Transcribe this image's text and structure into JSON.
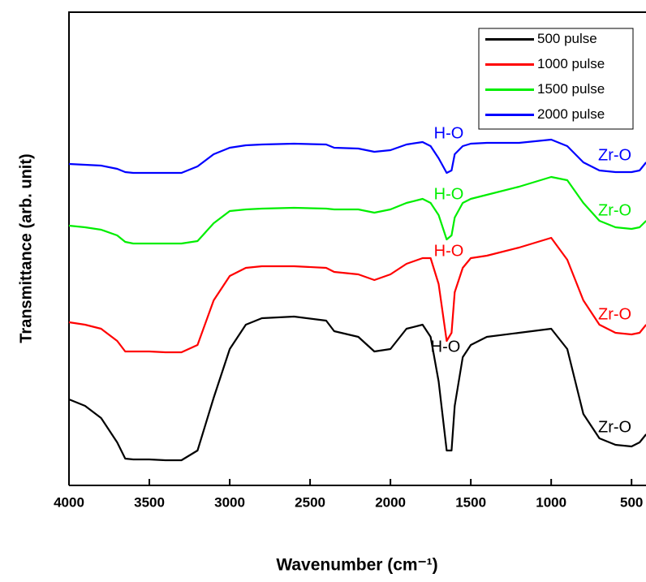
{
  "chart_data": {
    "type": "line",
    "x_label": "Wavenumber (cm⁻¹)",
    "y_label": "Transmittance (arb. unit)",
    "xlim": [
      4000,
      400
    ],
    "ylim": [
      0,
      583
    ],
    "xticks": [
      4000,
      3500,
      3000,
      2500,
      2000,
      1500,
      1000,
      500
    ],
    "x": [
      4000,
      3900,
      3800,
      3700,
      3650,
      3600,
      3500,
      3400,
      3300,
      3200,
      3100,
      3000,
      2900,
      2800,
      2600,
      2400,
      2350,
      2200,
      2100,
      2000,
      1900,
      1800,
      1750,
      1700,
      1650,
      1620,
      1600,
      1550,
      1500,
      1400,
      1200,
      1000,
      900,
      800,
      700,
      600,
      500,
      450,
      409
    ],
    "series": [
      {
        "name": "500 pulse",
        "color": "#000000",
        "values": [
          106,
          98,
          83,
          53,
          33,
          32,
          32,
          31,
          31,
          43,
          108,
          168,
          198,
          206,
          208,
          203,
          190,
          183,
          165,
          168,
          193,
          198,
          183,
          128,
          43,
          43,
          98,
          158,
          173,
          183,
          188,
          193,
          168,
          88,
          58,
          50,
          48,
          53,
          63
        ]
      },
      {
        "name": "1000 pulse",
        "color": "#ff0000",
        "values": [
          201,
          198,
          193,
          178,
          165,
          165,
          165,
          164,
          164,
          173,
          228,
          258,
          268,
          270,
          270,
          268,
          263,
          260,
          253,
          260,
          273,
          280,
          280,
          248,
          178,
          188,
          238,
          268,
          280,
          283,
          293,
          305,
          278,
          228,
          198,
          188,
          186,
          188,
          198
        ]
      },
      {
        "name": "1500 pulse",
        "color": "#00ee00",
        "values": [
          320,
          318,
          315,
          308,
          300,
          298,
          298,
          298,
          298,
          301,
          323,
          338,
          340,
          341,
          342,
          341,
          340,
          340,
          336,
          340,
          348,
          353,
          348,
          333,
          303,
          308,
          330,
          348,
          353,
          358,
          368,
          380,
          376,
          348,
          326,
          318,
          316,
          318,
          326
        ]
      },
      {
        "name": "2000 pulse",
        "color": "#0000ff",
        "values": [
          396,
          395,
          394,
          390,
          386,
          385,
          385,
          385,
          385,
          393,
          408,
          416,
          419,
          420,
          421,
          420,
          416,
          415,
          411,
          413,
          420,
          423,
          418,
          403,
          385,
          388,
          408,
          418,
          421,
          422,
          422,
          426,
          418,
          398,
          388,
          386,
          386,
          388,
          398
        ]
      }
    ],
    "annotations": [
      {
        "text": "H-O",
        "color": "#000000"
      },
      {
        "text": "Zr-O",
        "color": "#000000"
      },
      {
        "text": "H-O",
        "color": "#ff0000"
      },
      {
        "text": "Zr-O",
        "color": "#ff0000"
      },
      {
        "text": "H-O",
        "color": "#00ee00"
      },
      {
        "text": "Zr-O",
        "color": "#00ee00"
      },
      {
        "text": "H-O",
        "color": "#0000ff"
      },
      {
        "text": "Zr-O",
        "color": "#0000ff"
      }
    ],
    "legend": "upper right"
  }
}
